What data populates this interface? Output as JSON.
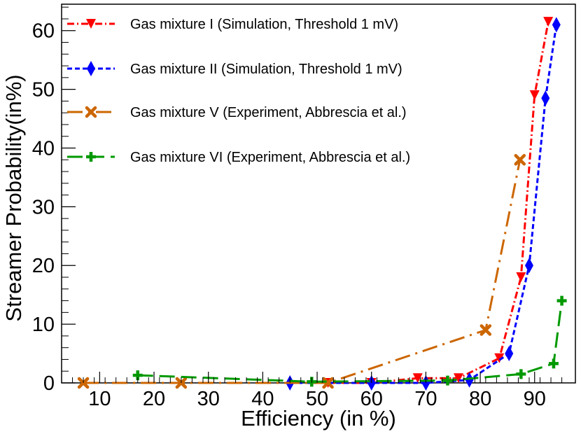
{
  "chart_data": {
    "type": "line",
    "xlabel": "Efficiency (in %)",
    "ylabel": "Streamer Probability(in%)",
    "xlim": [
      3,
      97.5
    ],
    "ylim": [
      0,
      64.5
    ],
    "xticks": [
      10,
      20,
      30,
      40,
      50,
      60,
      70,
      80,
      90
    ],
    "yticks": [
      0,
      10,
      20,
      30,
      40,
      50,
      60
    ],
    "grid": false,
    "legend_position": "top-left",
    "series": [
      {
        "name": "Gas mixture I (Simulation, Threshold 1 mV)",
        "color": "#ff0000",
        "line_style": "dash-dot",
        "marker": "triangle-down",
        "points": [
          [
            52,
            0
          ],
          [
            60,
            0
          ],
          [
            68.5,
            0.8
          ],
          [
            76,
            0.8
          ],
          [
            83.5,
            4.2
          ],
          [
            87.5,
            18
          ],
          [
            90,
            49
          ],
          [
            92.5,
            61.5
          ]
        ]
      },
      {
        "name": "Gas mixture II (Simulation, Threshold 1 mV)",
        "color": "#0000ff",
        "line_style": "dashed",
        "marker": "diamond",
        "points": [
          [
            45,
            0
          ],
          [
            60,
            0
          ],
          [
            70,
            0
          ],
          [
            78,
            0.5
          ],
          [
            85.3,
            5
          ],
          [
            89,
            20
          ],
          [
            92,
            48.5
          ],
          [
            94,
            61
          ]
        ]
      },
      {
        "name": "Gas mixture V (Experiment, Abbrescia et al.)",
        "color": "#cc6600",
        "line_style": "long-dash-dot",
        "marker": "x-cross",
        "points": [
          [
            7,
            0
          ],
          [
            25,
            0
          ],
          [
            52,
            0
          ],
          [
            81,
            9
          ],
          [
            87.3,
            38
          ]
        ]
      },
      {
        "name": "Gas mixture VI (Experiment, Abbrescia et al.)",
        "color": "#009900",
        "line_style": "long-dash",
        "marker": "plus",
        "points": [
          [
            17,
            1.3
          ],
          [
            49,
            0.2
          ],
          [
            74,
            0.4
          ],
          [
            87.5,
            1.5
          ],
          [
            93.5,
            3.3
          ],
          [
            95,
            14
          ]
        ]
      }
    ]
  }
}
